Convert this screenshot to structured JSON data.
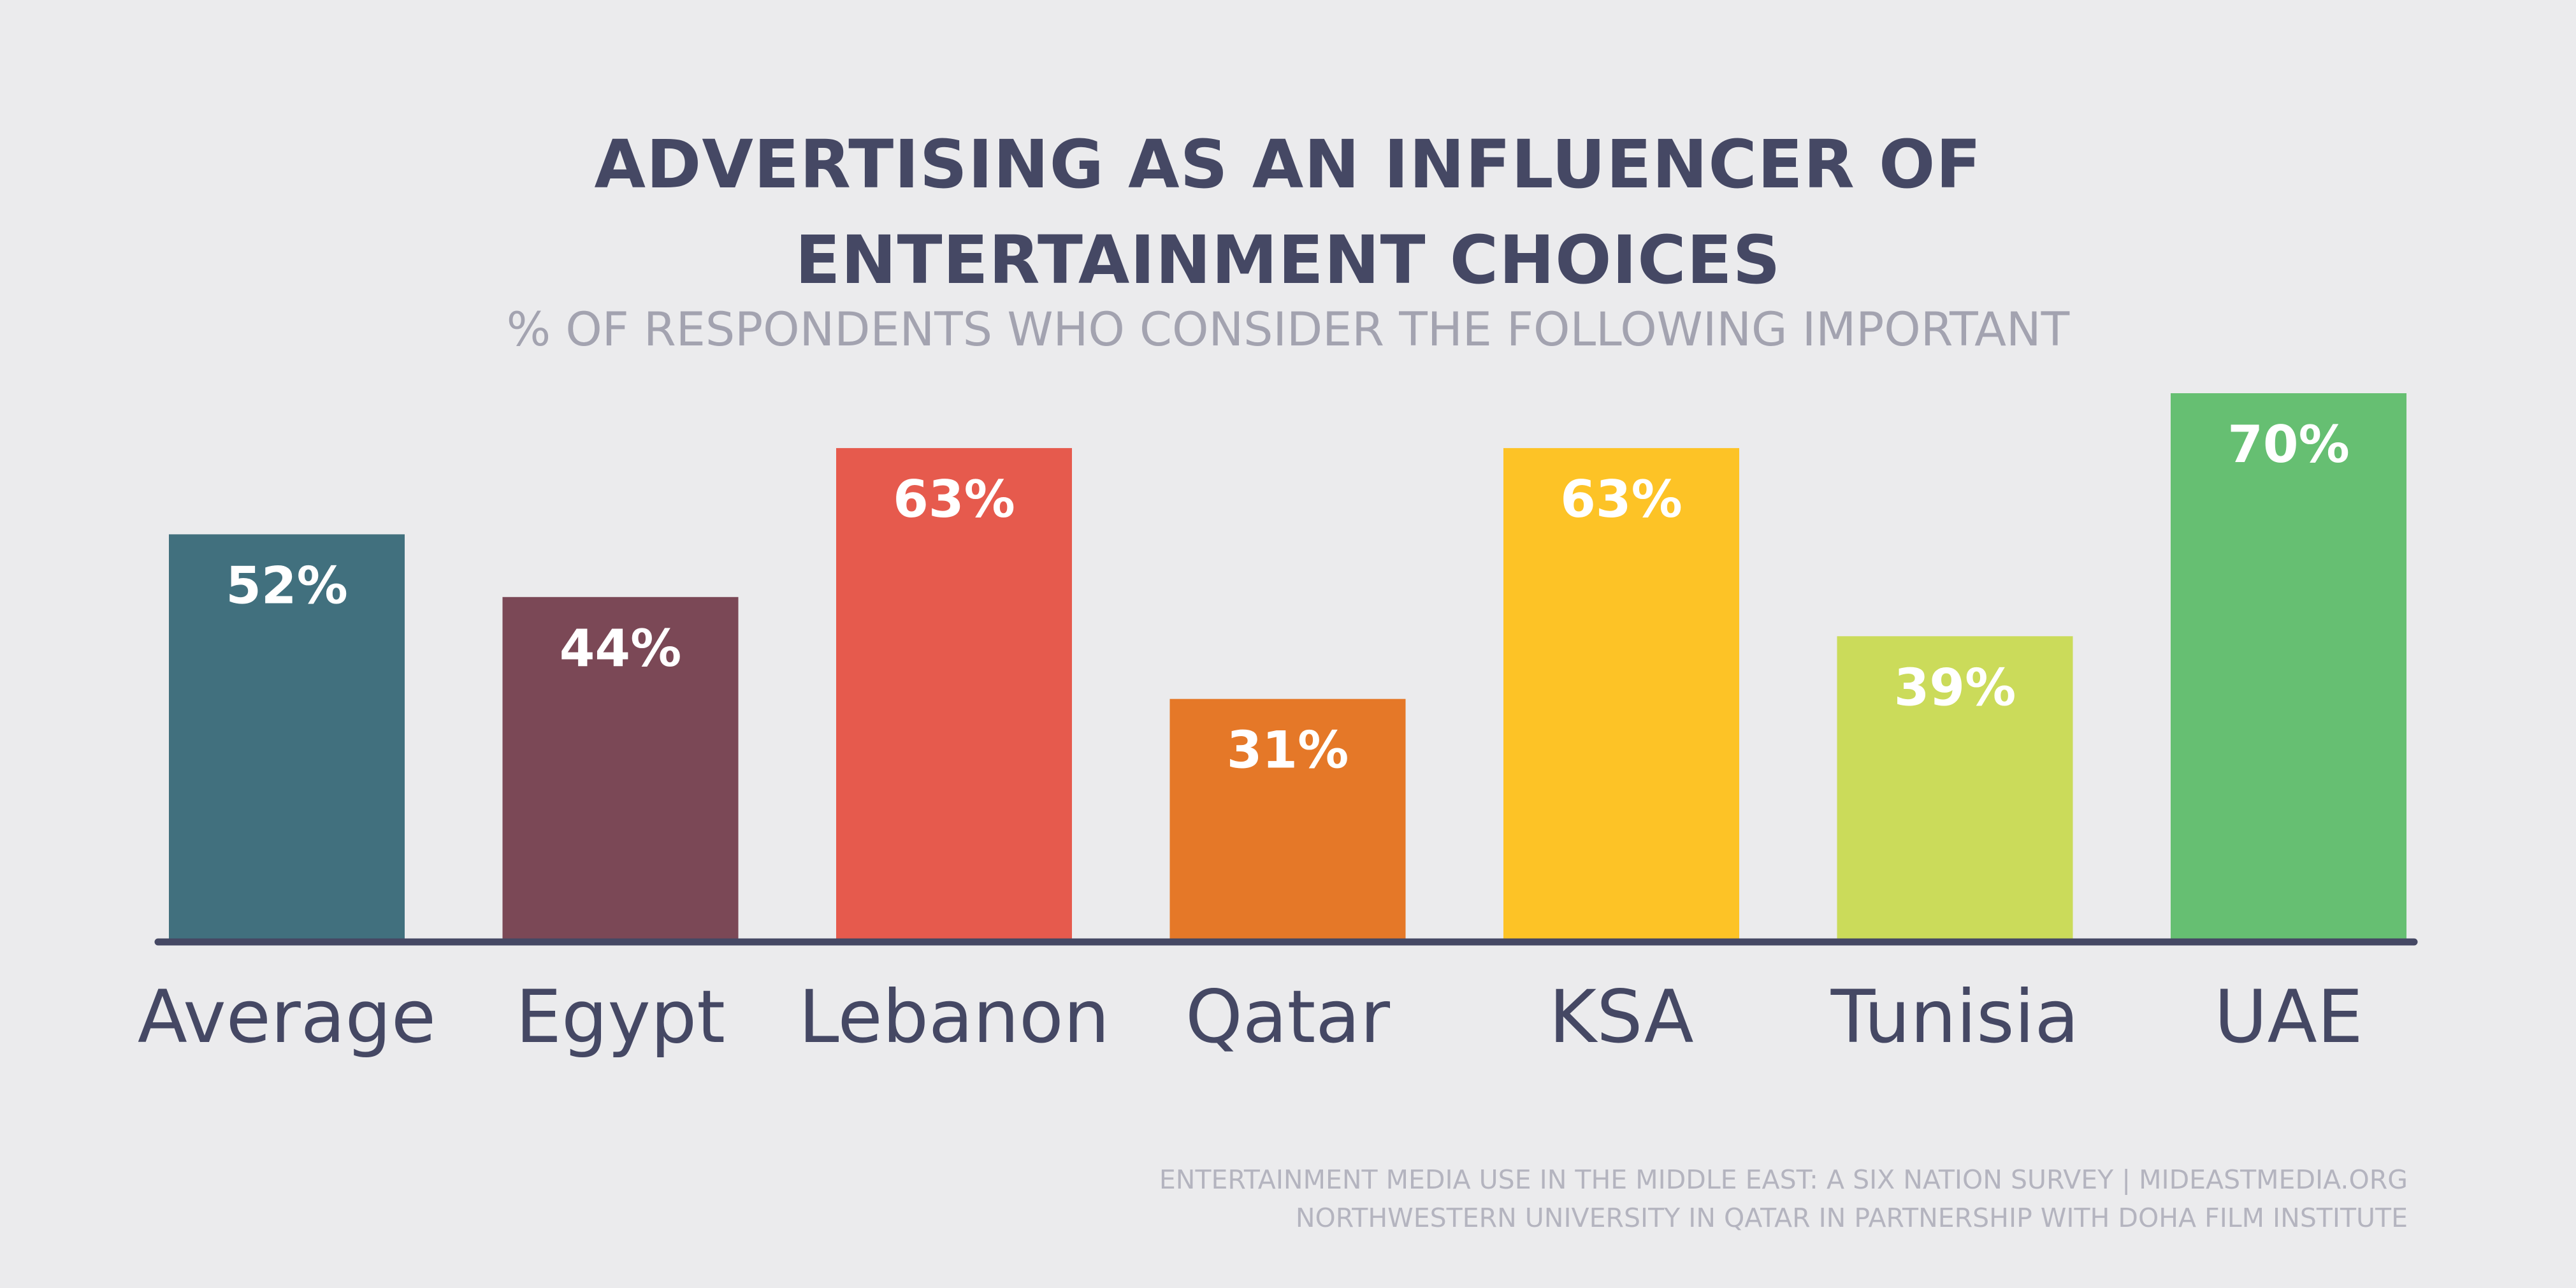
{
  "chart_data": {
    "type": "bar",
    "title": "ADVERTISING AS AN INFLUENCER OF ENTERTAINMENT CHOICES",
    "subtitle": "% OF RESPONDENTS WHO CONSIDER THE FOLLOWING IMPORTANT",
    "categories": [
      "Average",
      "Egypt",
      "Lebanon",
      "Qatar",
      "KSA",
      "Tunisia",
      "UAE"
    ],
    "values": [
      52,
      44,
      63,
      31,
      63,
      39,
      70
    ],
    "data_labels": [
      "52%",
      "44%",
      "63%",
      "31%",
      "63%",
      "39%",
      "70%"
    ],
    "colors": [
      "#41707e",
      "#7b4856",
      "#e65a4d",
      "#e57828",
      "#fdc326",
      "#cbdb5a",
      "#66bf72"
    ],
    "label_color": "#ffffff",
    "axis_color": "#454864",
    "category_label_color": "#454864",
    "xlabel": "",
    "ylabel": "",
    "ylim": [
      0,
      70
    ],
    "grid": false,
    "legend": "none"
  },
  "header": {
    "title_line1": "ADVERTISING AS AN INFLUENCER OF",
    "title_line2": "ENTERTAINMENT CHOICES",
    "subtitle": "% OF RESPONDENTS WHO CONSIDER THE FOLLOWING IMPORTANT"
  },
  "footer": {
    "line1": "ENTERTAINMENT MEDIA USE IN THE MIDDLE EAST: A SIX NATION SURVEY | MIDEASTMEDIA.ORG",
    "line2": "NORTHWESTERN UNIVERSITY IN QATAR IN PARTNERSHIP WITH DOHA FILM INSTITUTE"
  }
}
